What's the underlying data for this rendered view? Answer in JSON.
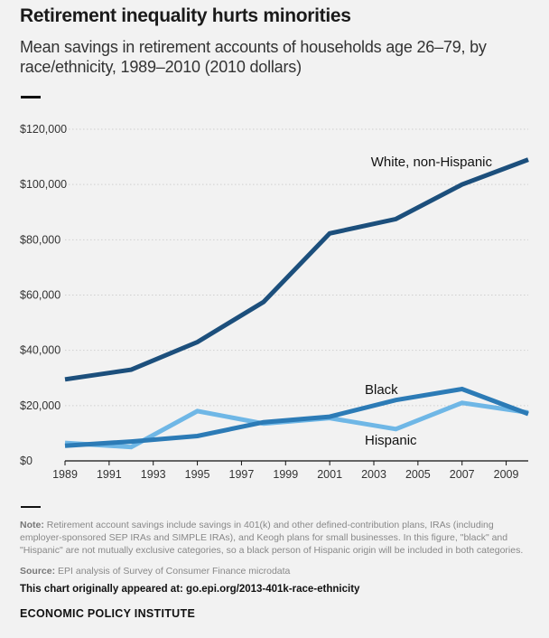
{
  "header": {
    "title": "Retirement inequality hurts minorities",
    "subtitle": "Mean savings in retirement accounts of households age 26–79, by race/ethnicity, 1989–2010 (2010 dollars)"
  },
  "footer": {
    "note_label": "Note:",
    "note_text": " Retirement account savings include savings in 401(k) and other defined-contribution plans, IRAs (including employer-sponsored SEP IRAs and SIMPLE IRAs), and Keogh plans for small businesses. In this figure, \"black\" and \"Hispanic\" are not mutually exclusive categories, so a black person of Hispanic origin will be included in both categories.",
    "source_label": "Source:",
    "source_text": " EPI analysis of Survey of Consumer Finance microdata",
    "appeared": "This chart originally appeared at: go.epi.org/2013-401k-race-ethnicity",
    "org": "ECONOMIC POLICY INSTITUTE"
  },
  "colors": {
    "white": "#1c4f7c",
    "black": "#2c7bb6",
    "hispanic": "#6fb7e6",
    "grid": "#cfcfcf",
    "axis": "#111111"
  },
  "chart_data": {
    "type": "line",
    "x": [
      1989,
      1992,
      1995,
      1998,
      2001,
      2004,
      2007,
      2010
    ],
    "series": [
      {
        "name": "White, non-Hispanic",
        "color_key": "white",
        "values": [
          29500,
          33000,
          43000,
          57500,
          82300,
          87500,
          100000,
          109000
        ]
      },
      {
        "name": "Black",
        "color_key": "black",
        "values": [
          5500,
          7000,
          9000,
          14000,
          16000,
          22000,
          26000,
          17000
        ]
      },
      {
        "name": "Hispanic",
        "color_key": "hispanic",
        "values": [
          6500,
          5000,
          18000,
          13500,
          15500,
          11500,
          21000,
          17500
        ]
      }
    ],
    "xticks": [
      1989,
      1991,
      1993,
      1995,
      1997,
      1999,
      2001,
      2003,
      2005,
      2007,
      2009
    ],
    "yticks": [
      0,
      20000,
      40000,
      60000,
      80000,
      100000,
      120000
    ],
    "ytick_labels": [
      "$0",
      "$20,000",
      "$40,000",
      "$60,000",
      "$80,000",
      "$100,000",
      "$120,000"
    ],
    "xlim": [
      1989,
      2010
    ],
    "ylim": [
      0,
      120000
    ],
    "grid": true
  }
}
